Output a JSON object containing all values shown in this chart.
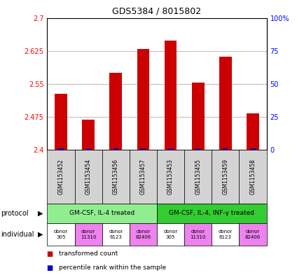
{
  "title": "GDS5384 / 8015802",
  "samples": [
    "GSM1153452",
    "GSM1153454",
    "GSM1153456",
    "GSM1153457",
    "GSM1153453",
    "GSM1153455",
    "GSM1153459",
    "GSM1153458"
  ],
  "bar_values": [
    2.528,
    2.468,
    2.575,
    2.63,
    2.648,
    2.553,
    2.612,
    2.483
  ],
  "ylim_left": [
    2.4,
    2.7
  ],
  "ylim_right": [
    0,
    100
  ],
  "yticks_left": [
    2.4,
    2.475,
    2.55,
    2.625,
    2.7
  ],
  "yticks_right": [
    0,
    25,
    50,
    75,
    100
  ],
  "ytick_labels_left": [
    "2.4",
    "2.475",
    "2.55",
    "2.625",
    "2.7"
  ],
  "ytick_labels_right": [
    "0",
    "25",
    "50",
    "75",
    "100%"
  ],
  "bar_color": "#cc0000",
  "percentile_color": "#0000cc",
  "protocol_groups": [
    {
      "label": "GM-CSF, IL-4 treated",
      "start": 0,
      "end": 4,
      "color": "#90ee90"
    },
    {
      "label": "GM-CSF, IL-4, INF-γ treated",
      "start": 4,
      "end": 8,
      "color": "#33cc33"
    }
  ],
  "individuals": [
    {
      "label": "donor\n305",
      "color": "#ffffff"
    },
    {
      "label": "donor\n11310",
      "color": "#ee82ee"
    },
    {
      "label": "donor\n6123",
      "color": "#ffffff"
    },
    {
      "label": "donor\n82406",
      "color": "#ee82ee"
    },
    {
      "label": "donor\n305",
      "color": "#ffffff"
    },
    {
      "label": "donor\n11310",
      "color": "#ee82ee"
    },
    {
      "label": "donor\n6123",
      "color": "#ffffff"
    },
    {
      "label": "donor\n82406",
      "color": "#ee82ee"
    }
  ],
  "label_protocol": "protocol",
  "label_individual": "individual",
  "legend_red": "transformed count",
  "legend_blue": "percentile rank within the sample",
  "plot_bg": "#ffffff",
  "sample_box_color": "#d3d3d3"
}
